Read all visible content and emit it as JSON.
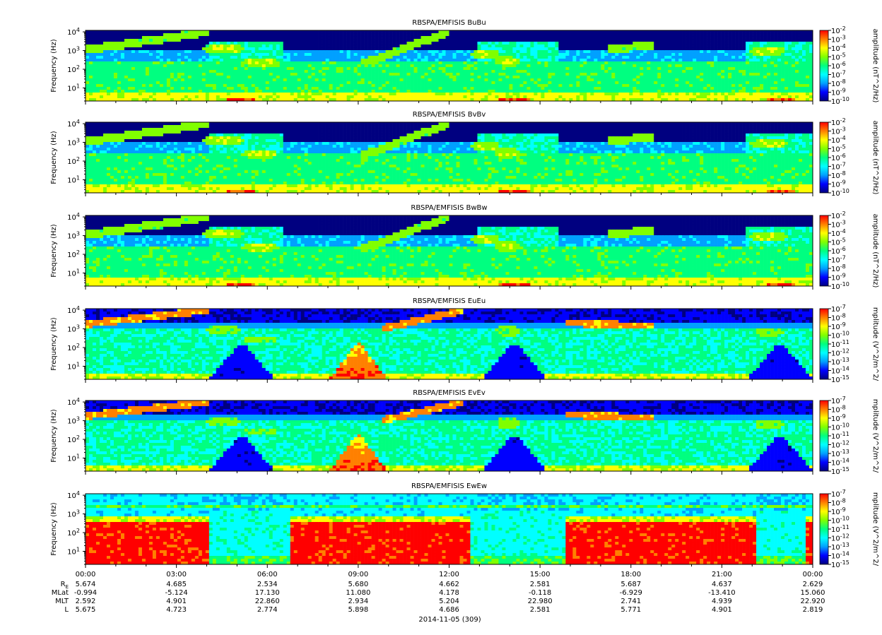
{
  "chart_data": {
    "type": "heatmap",
    "date_label": "2014-11-05 (309)",
    "x_tick_labels": [
      "00:00",
      "03:00",
      "06:00",
      "09:00",
      "12:00",
      "15:00",
      "18:00",
      "21:00",
      "00:00"
    ],
    "panels": [
      {
        "title": "RBSPA/EMFISIS  BuBu",
        "ylabel": "Frequency (Hz)",
        "colorbar_label": "amplitude (nT^2/Hz)",
        "colorbar_exponents": [
          -2,
          -3,
          -4,
          -5,
          -6,
          -7,
          -8,
          -9,
          -10
        ],
        "kind": "B"
      },
      {
        "title": "RBSPA/EMFISIS  BvBv",
        "ylabel": "Frequency (Hz)",
        "colorbar_label": "amplitude (nT^2/Hz)",
        "colorbar_exponents": [
          -2,
          -3,
          -4,
          -5,
          -6,
          -7,
          -8,
          -9,
          -10
        ],
        "kind": "B"
      },
      {
        "title": "RBSPA/EMFISIS  BwBw",
        "ylabel": "Frequency (Hz)",
        "colorbar_label": "amplitude (nT^2/Hz)",
        "colorbar_exponents": [
          -2,
          -3,
          -4,
          -5,
          -6,
          -7,
          -8,
          -9,
          -10
        ],
        "kind": "B"
      },
      {
        "title": "RBSPA/EMFISIS  EuEu",
        "ylabel": "Frequency (Hz)",
        "colorbar_label": "mplitude (V^2/m^2/",
        "colorbar_exponents": [
          -7,
          -8,
          -9,
          -10,
          -11,
          -12,
          -13,
          -14,
          -15
        ],
        "kind": "E"
      },
      {
        "title": "RBSPA/EMFISIS  EvEv",
        "ylabel": "Frequency (Hz)",
        "colorbar_label": "mplitude (V^2/m^2/",
        "colorbar_exponents": [
          -7,
          -8,
          -9,
          -10,
          -11,
          -12,
          -13,
          -14,
          -15
        ],
        "kind": "E"
      },
      {
        "title": "RBSPA/EMFISIS  EwEw",
        "ylabel": "Frequency (Hz)",
        "colorbar_label": "mplitude (V^2/m^2/",
        "colorbar_exponents": [
          -7,
          -8,
          -9,
          -10,
          -11,
          -12,
          -13,
          -14,
          -15
        ],
        "kind": "Ew"
      }
    ],
    "y_axis": {
      "scale": "log",
      "tick_exponents": [
        1,
        2,
        3,
        4
      ],
      "base": "10",
      "ylim_hz": [
        2,
        12000
      ]
    },
    "ephemeris": {
      "labels": [
        "R",
        "MLat",
        "MLT",
        "L"
      ],
      "re_subscript": "E",
      "rows": [
        [
          "5.674",
          "4.685",
          "2.534",
          "5.680",
          "4.662",
          "2.581",
          "5.687",
          "4.637",
          "2.629"
        ],
        [
          "-0.994",
          "-5.124",
          "17.130",
          "11.080",
          "4.178",
          "-0.118",
          "-6.929",
          "-13.410",
          "15.060"
        ],
        [
          "2.592",
          "4.901",
          "22.860",
          "2.934",
          "5.204",
          "22.980",
          "2.741",
          "4.939",
          "22.920"
        ],
        [
          "5.675",
          "4.723",
          "2.774",
          "5.898",
          "4.686",
          "2.581",
          "5.771",
          "4.901",
          "2.819"
        ]
      ]
    },
    "colormap": [
      "#000080",
      "#0000ff",
      "#00a0ff",
      "#00ffff",
      "#00ff80",
      "#80ff00",
      "#ffff00",
      "#ff8000",
      "#ff0000"
    ]
  }
}
